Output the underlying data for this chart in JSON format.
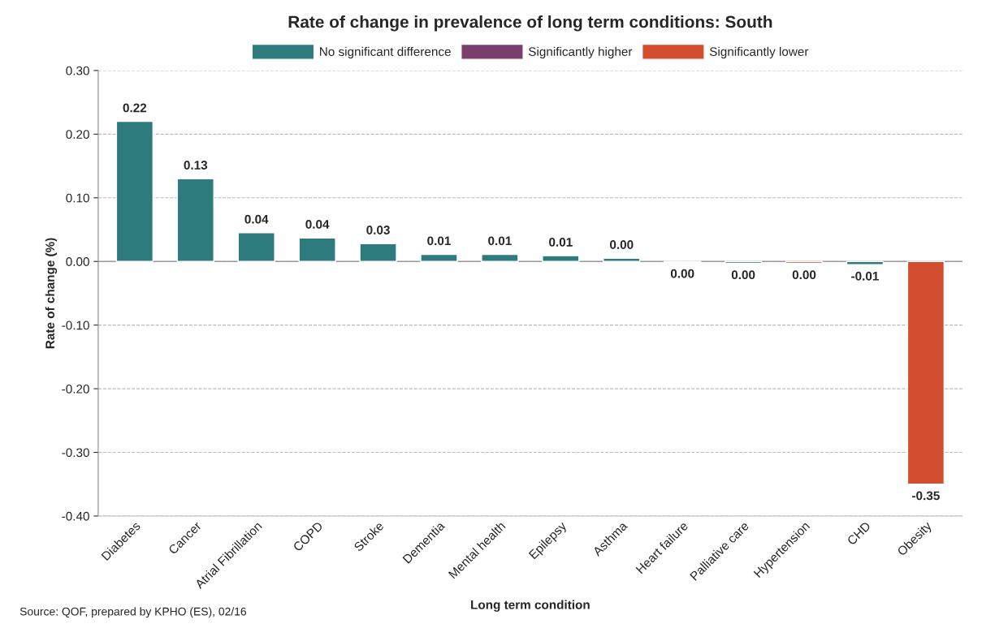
{
  "chart_data": {
    "type": "bar",
    "title": "Rate of change in prevalence of long term conditions: South",
    "xlabel": "Long term condition",
    "ylabel": "Rate of change (%)",
    "categories": [
      "Diabetes",
      "Cancer",
      "Atrial Fibrillation",
      "COPD",
      "Stroke",
      "Dementia",
      "Mental health",
      "Epilepsy",
      "Asthma",
      "Heart failure",
      "Palliative care",
      "Hypertension",
      "CHD",
      "Obesity"
    ],
    "stacked": true,
    "series": [
      {
        "name": "No significant difference",
        "color": "#2e7b7e",
        "values": [
          0.22,
          0.13,
          0.045,
          0.037,
          0.028,
          0.011,
          0.011,
          0.009,
          0.005,
          -0.001,
          -0.003,
          null,
          -0.005,
          null
        ],
        "value_labels": [
          "0.22",
          "0.13",
          "0.04",
          "0.04",
          "0.03",
          "0.01",
          "0.01",
          "0.01",
          "0.00",
          "0.00",
          "0.00",
          null,
          "-0.01",
          null
        ]
      },
      {
        "name": "Significantly higher",
        "color": "#7b3f6e",
        "values": [
          null,
          null,
          null,
          null,
          null,
          null,
          null,
          null,
          null,
          null,
          null,
          null,
          null,
          null
        ],
        "value_labels": [
          null,
          null,
          null,
          null,
          null,
          null,
          null,
          null,
          null,
          null,
          null,
          null,
          null,
          null
        ]
      },
      {
        "name": "Significantly lower",
        "color": "#d24e2e",
        "values": [
          null,
          null,
          null,
          null,
          null,
          null,
          null,
          null,
          null,
          null,
          null,
          -0.003,
          null,
          -0.35
        ],
        "value_labels": [
          null,
          null,
          null,
          null,
          null,
          null,
          null,
          null,
          null,
          null,
          null,
          "0.00",
          null,
          "-0.35"
        ]
      }
    ],
    "ylim": [
      -0.4,
      0.3
    ],
    "yticks": [
      {
        "value": -0.4,
        "label": "-0.40"
      },
      {
        "value": -0.3,
        "label": "-0.30"
      },
      {
        "value": -0.2,
        "label": "-0.20"
      },
      {
        "value": -0.1,
        "label": "-0.10"
      },
      {
        "value": 0,
        "label": "0.00"
      },
      {
        "value": 0.1,
        "label": "0.10"
      },
      {
        "value": 0.2,
        "label": "0.20"
      },
      {
        "value": 0.3,
        "label": "0.30"
      }
    ],
    "grid": "y",
    "legend": "top",
    "annotations": [
      "Source: QOF, prepared by KPHO (ES), 02/16"
    ]
  }
}
